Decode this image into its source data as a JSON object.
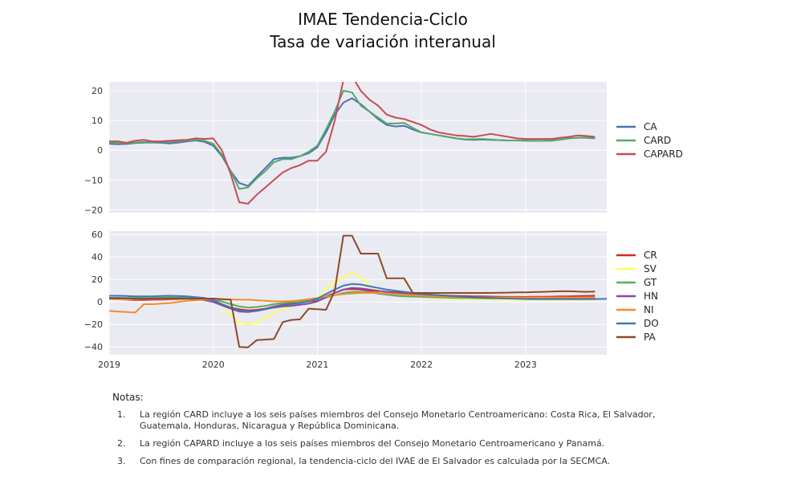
{
  "figure": {
    "title_line1": "IMAE Tendencia-Ciclo",
    "title_line2": "Tasa de variación interanual"
  },
  "chart_data": [
    {
      "type": "line",
      "x": [
        2019.0,
        2019.083,
        2019.167,
        2019.25,
        2019.333,
        2019.417,
        2019.5,
        2019.583,
        2019.667,
        2019.75,
        2019.833,
        2019.917,
        2020.0,
        2020.083,
        2020.167,
        2020.25,
        2020.333,
        2020.417,
        2020.5,
        2020.583,
        2020.667,
        2020.75,
        2020.833,
        2020.917,
        2021.0,
        2021.083,
        2021.167,
        2021.25,
        2021.333,
        2021.417,
        2021.5,
        2021.583,
        2021.667,
        2021.75,
        2021.833,
        2021.917,
        2022.0,
        2022.083,
        2022.167,
        2022.25,
        2022.333,
        2022.417,
        2022.5,
        2022.583,
        2022.667,
        2022.75,
        2022.833,
        2022.917,
        2023.0,
        2023.083,
        2023.167,
        2023.25,
        2023.333,
        2023.417,
        2023.5,
        2023.583,
        2023.667
      ],
      "series": [
        {
          "name": "CA",
          "color": "#4c72b0",
          "values": [
            2.2,
            2.0,
            2.1,
            2.4,
            2.6,
            2.6,
            2.5,
            2.3,
            2.6,
            3.0,
            3.3,
            2.8,
            1.5,
            -2.0,
            -7.0,
            -11.0,
            -12.0,
            -9.0,
            -6.0,
            -3.0,
            -2.5,
            -2.5,
            -2.0,
            -1.0,
            1.0,
            6.0,
            12.0,
            16.0,
            17.5,
            15.5,
            13.0,
            10.5,
            8.5,
            8.0,
            8.2,
            7.0,
            6.0,
            5.5,
            5.0,
            4.5,
            4.0,
            3.6,
            3.5,
            3.6,
            3.5,
            3.4,
            3.3,
            3.3,
            3.2,
            3.2,
            3.2,
            3.3,
            3.6,
            4.0,
            4.2,
            4.2,
            4.0
          ]
        },
        {
          "name": "CARD",
          "color": "#55a868",
          "values": [
            2.5,
            2.4,
            2.4,
            2.6,
            2.8,
            2.8,
            2.8,
            2.8,
            3.0,
            3.3,
            3.5,
            3.2,
            2.2,
            -1.5,
            -7.0,
            -13.0,
            -12.5,
            -9.5,
            -7.0,
            -4.0,
            -3.0,
            -3.0,
            -2.0,
            -0.5,
            1.5,
            7.0,
            13.0,
            20.0,
            19.5,
            15.0,
            13.0,
            11.0,
            9.0,
            9.0,
            9.2,
            7.5,
            6.0,
            5.5,
            5.0,
            4.5,
            4.0,
            3.7,
            3.7,
            3.8,
            3.6,
            3.4,
            3.3,
            3.3,
            3.3,
            3.2,
            3.2,
            3.2,
            3.6,
            4.0,
            4.2,
            4.3,
            4.2
          ]
        },
        {
          "name": "CAPARD",
          "color": "#c44e52",
          "values": [
            3.0,
            3.0,
            2.5,
            3.2,
            3.5,
            3.0,
            3.0,
            3.2,
            3.4,
            3.5,
            4.0,
            3.8,
            4.0,
            0.0,
            -8.0,
            -17.5,
            -18.0,
            -15.0,
            -12.5,
            -10.0,
            -7.5,
            -6.0,
            -5.0,
            -3.5,
            -3.5,
            -0.5,
            10.0,
            23.5,
            25.0,
            20.0,
            17.0,
            15.0,
            12.0,
            11.0,
            10.5,
            9.5,
            8.5,
            7.0,
            6.0,
            5.5,
            5.0,
            4.8,
            4.5,
            5.0,
            5.5,
            5.0,
            4.5,
            4.0,
            3.8,
            3.8,
            3.8,
            3.8,
            4.2,
            4.5,
            5.0,
            4.8,
            4.5
          ]
        }
      ],
      "xlim": [
        2019.0,
        2023.78
      ],
      "ylim": [
        -21,
        23
      ],
      "yticks": [
        20,
        10,
        0,
        -10,
        -20
      ],
      "ytick_labels": [
        "20",
        "10",
        "0",
        "−10",
        "−20"
      ],
      "grid": true,
      "legend": "right"
    },
    {
      "type": "line",
      "x": [
        2019.0,
        2019.083,
        2019.167,
        2019.25,
        2019.333,
        2019.417,
        2019.5,
        2019.583,
        2019.667,
        2019.75,
        2019.833,
        2019.917,
        2020.0,
        2020.083,
        2020.167,
        2020.25,
        2020.333,
        2020.417,
        2020.5,
        2020.583,
        2020.667,
        2020.75,
        2020.833,
        2020.917,
        2021.0,
        2021.083,
        2021.167,
        2021.25,
        2021.333,
        2021.417,
        2021.5,
        2021.583,
        2021.667,
        2021.75,
        2021.833,
        2021.917,
        2022.0,
        2022.083,
        2022.167,
        2022.25,
        2022.333,
        2022.417,
        2022.5,
        2022.583,
        2022.667,
        2022.75,
        2022.833,
        2022.917,
        2023.0,
        2023.083,
        2023.167,
        2023.25,
        2023.333,
        2023.417,
        2023.5,
        2023.583,
        2023.667,
        2023.75,
        2023.833
      ],
      "series": [
        {
          "name": "CR",
          "color": "#d62728",
          "values": [
            2.5,
            2.3,
            2.0,
            1.8,
            1.8,
            2.0,
            2.0,
            2.3,
            2.5,
            2.8,
            3.0,
            2.8,
            2.0,
            -2.0,
            -5.0,
            -6.5,
            -7.5,
            -7.0,
            -6.0,
            -4.0,
            -2.5,
            -1.5,
            -1.0,
            0.0,
            1.5,
            5.0,
            8.0,
            11.0,
            11.5,
            11.0,
            10.0,
            9.5,
            9.0,
            8.5,
            8.0,
            7.5,
            7.0,
            6.5,
            6.0,
            5.7,
            5.4,
            5.2,
            5.0,
            5.0,
            4.8,
            4.6,
            4.5,
            4.5,
            4.5,
            4.6,
            4.6,
            4.7,
            4.9,
            5.0,
            5.2,
            5.4,
            5.5,
            null,
            null
          ]
        },
        {
          "name": "SV",
          "color": "#ffff5c",
          "values": [
            2.5,
            2.5,
            2.5,
            2.8,
            2.8,
            2.8,
            2.8,
            2.8,
            2.8,
            3.0,
            3.0,
            2.5,
            2.0,
            -3.0,
            -12.0,
            -18.5,
            -20.0,
            -18.0,
            -14.0,
            -10.0,
            -7.0,
            -4.0,
            -2.0,
            0.0,
            3.0,
            12.0,
            18.0,
            22.0,
            26.0,
            22.0,
            15.0,
            10.0,
            7.0,
            6.0,
            5.0,
            5.0,
            4.5,
            4.0,
            3.5,
            3.0,
            2.8,
            2.5,
            2.5,
            2.3,
            2.2,
            2.0,
            2.0,
            2.0,
            2.0,
            2.0,
            2.0,
            2.0,
            2.0,
            2.0,
            2.0,
            2.0,
            2.0,
            null,
            null
          ]
        },
        {
          "name": "GT",
          "color": "#5aad5a",
          "values": [
            3.5,
            3.5,
            3.5,
            3.5,
            3.5,
            3.6,
            3.8,
            3.9,
            3.9,
            3.8,
            3.5,
            3.0,
            2.5,
            0.5,
            -2.0,
            -4.0,
            -5.0,
            -4.5,
            -3.5,
            -2.0,
            -1.0,
            0.0,
            0.5,
            1.0,
            2.0,
            4.0,
            6.0,
            8.0,
            9.0,
            9.0,
            8.5,
            7.5,
            6.5,
            5.5,
            5.0,
            4.8,
            4.5,
            4.2,
            4.0,
            3.8,
            3.6,
            3.5,
            3.4,
            3.3,
            3.2,
            3.2,
            3.2,
            3.2,
            3.2,
            3.3,
            3.4,
            3.5,
            3.6,
            3.6,
            3.6,
            3.6,
            3.6,
            null,
            null
          ]
        },
        {
          "name": "HN",
          "color": "#8e44ad",
          "values": [
            3.5,
            3.5,
            3.3,
            3.0,
            2.8,
            2.8,
            3.0,
            3.2,
            3.3,
            3.0,
            2.5,
            1.5,
            0.0,
            -3.0,
            -6.0,
            -8.5,
            -9.0,
            -8.0,
            -6.5,
            -5.0,
            -4.0,
            -3.5,
            -2.5,
            -1.5,
            0.5,
            4.0,
            8.0,
            11.0,
            12.5,
            12.0,
            11.0,
            10.0,
            9.0,
            8.0,
            7.0,
            6.5,
            6.0,
            5.5,
            5.0,
            4.7,
            4.5,
            4.3,
            4.0,
            3.8,
            3.6,
            3.5,
            3.4,
            3.3,
            3.2,
            3.2,
            3.2,
            3.3,
            3.4,
            3.5,
            3.6,
            3.6,
            3.6,
            null,
            null
          ]
        },
        {
          "name": "NI",
          "color": "#f28e2b",
          "values": [
            -8.0,
            -8.5,
            -9.0,
            -9.5,
            -2.0,
            -2.0,
            -1.5,
            -1.0,
            0.0,
            1.0,
            1.5,
            2.0,
            2.5,
            2.5,
            2.3,
            2.0,
            2.0,
            1.5,
            1.0,
            0.5,
            0.5,
            0.8,
            1.5,
            2.5,
            3.5,
            5.0,
            6.0,
            7.0,
            7.5,
            8.0,
            8.0,
            8.0,
            7.5,
            7.0,
            6.5,
            6.0,
            5.5,
            5.0,
            4.8,
            4.6,
            4.4,
            4.2,
            4.0,
            4.0,
            4.0,
            4.0,
            4.0,
            4.0,
            4.0,
            4.0,
            4.0,
            4.0,
            4.0,
            4.0,
            4.0,
            4.0,
            4.0,
            null,
            null
          ]
        },
        {
          "name": "DO",
          "color": "#3b7ab5",
          "values": [
            5.5,
            5.5,
            5.3,
            5.0,
            5.0,
            5.0,
            5.3,
            5.5,
            5.3,
            5.0,
            4.3,
            3.5,
            1.5,
            -2.0,
            -5.0,
            -7.5,
            -8.5,
            -8.0,
            -6.5,
            -4.5,
            -3.0,
            -2.0,
            -1.0,
            0.5,
            3.0,
            7.0,
            11.0,
            14.5,
            16.0,
            15.5,
            14.0,
            12.5,
            11.0,
            10.0,
            9.0,
            8.0,
            7.0,
            6.5,
            6.0,
            5.5,
            5.0,
            4.5,
            4.0,
            3.8,
            3.5,
            3.3,
            3.0,
            2.8,
            2.6,
            2.5,
            2.5,
            2.4,
            2.4,
            2.4,
            2.5,
            2.5,
            2.6,
            2.7,
            2.8
          ]
        },
        {
          "name": "PA",
          "color": "#8c4a2a",
          "values": [
            3.0,
            3.0,
            3.0,
            3.0,
            3.0,
            3.0,
            3.0,
            3.0,
            3.0,
            3.0,
            3.0,
            3.0,
            3.0,
            2.5,
            2.0,
            -40.0,
            -40.5,
            -34.0,
            -33.5,
            -33.0,
            -18.0,
            -16.0,
            -15.5,
            -6.0,
            -6.5,
            -7.0,
            10.0,
            59.0,
            59.0,
            43.0,
            43.0,
            43.0,
            21.0,
            21.0,
            21.0,
            8.0,
            8.0,
            8.0,
            8.0,
            8.0,
            8.0,
            8.0,
            8.0,
            8.0,
            8.0,
            8.2,
            8.3,
            8.5,
            8.5,
            8.8,
            9.0,
            9.3,
            9.5,
            9.5,
            9.3,
            9.0,
            9.3,
            null,
            null
          ]
        }
      ],
      "xlim": [
        2019.0,
        2023.78
      ],
      "ylim": [
        -47,
        63
      ],
      "yticks": [
        60,
        40,
        20,
        0,
        -20,
        -40
      ],
      "ytick_labels": [
        "60",
        "40",
        "20",
        "0",
        "−20",
        "−40"
      ],
      "xticks": [
        2019,
        2020,
        2021,
        2022,
        2023
      ],
      "xtick_labels": [
        "2019",
        "2020",
        "2021",
        "2022",
        "2023"
      ],
      "grid": true,
      "legend": "right"
    }
  ],
  "notes": {
    "heading": "Notas:",
    "items": [
      {
        "num": "1.",
        "text": "La región CARD incluye a los seis países miembros del Consejo Monetario Centroamericano: Costa Rica, El Salvador, Guatemala, Honduras, Nicaragua y República Dominicana."
      },
      {
        "num": "2.",
        "text": "La región CAPARD incluye a los seis países miembros del Consejo Monetario Centroamericano y Panamá."
      },
      {
        "num": "3.",
        "text": "Con fines de comparación regional, la tendencia-ciclo del IVAE de El Salvador es calculada por la SECMCA."
      }
    ]
  }
}
